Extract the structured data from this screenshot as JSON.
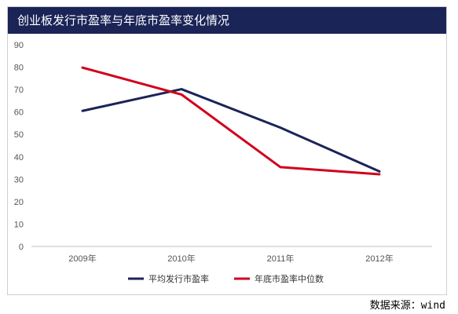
{
  "colors": {
    "header_bg": "#1b2457",
    "series_navy": "#1b2457",
    "series_red": "#d0021b"
  },
  "chart_data": {
    "type": "line",
    "title": "创业板发行市盈率与年底市盈率变化情况",
    "categories": [
      "2009年",
      "2010年",
      "2011年",
      "2012年"
    ],
    "ylim": [
      0,
      90
    ],
    "yticks": [
      0,
      10,
      20,
      30,
      40,
      50,
      60,
      70,
      80,
      90
    ],
    "grid": false,
    "legend": "bottom",
    "series": [
      {
        "name": "平均发行市盈率",
        "color": "#1b2457",
        "values": [
          60.5,
          70.2,
          53.0,
          33.5
        ]
      },
      {
        "name": "年底市盈率中位数",
        "color": "#d0021b",
        "values": [
          79.8,
          67.8,
          35.4,
          32.2
        ]
      }
    ]
  },
  "source_note": "数据来源：wind"
}
